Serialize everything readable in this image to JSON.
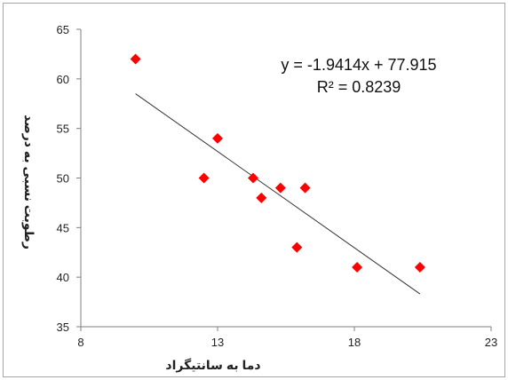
{
  "chart_data": {
    "type": "scatter",
    "xlabel": "دما به سانتیگراد",
    "ylabel": "رطوبت نسبی به درصد",
    "xlim": [
      8,
      23
    ],
    "ylim": [
      35,
      65
    ],
    "xticks": [
      8,
      13,
      18,
      23
    ],
    "yticks": [
      35,
      40,
      45,
      50,
      55,
      60,
      65
    ],
    "grid": false,
    "legend": "none",
    "marker": "diamond",
    "marker_color": "#ff0000",
    "points": [
      {
        "x": 10.0,
        "y": 62
      },
      {
        "x": 12.5,
        "y": 50
      },
      {
        "x": 13.0,
        "y": 54
      },
      {
        "x": 14.3,
        "y": 50
      },
      {
        "x": 14.6,
        "y": 48
      },
      {
        "x": 15.3,
        "y": 49
      },
      {
        "x": 16.2,
        "y": 49
      },
      {
        "x": 15.9,
        "y": 43
      },
      {
        "x": 18.1,
        "y": 41
      },
      {
        "x": 20.4,
        "y": 41
      }
    ],
    "trendline": {
      "type": "linear",
      "slope": -1.9414,
      "intercept": 77.915,
      "x_range": [
        10.0,
        20.4
      ],
      "color": "#333333",
      "equation_label": "y = -1.9414x + 77.915",
      "r2_label": "R² = 0.8239"
    }
  }
}
